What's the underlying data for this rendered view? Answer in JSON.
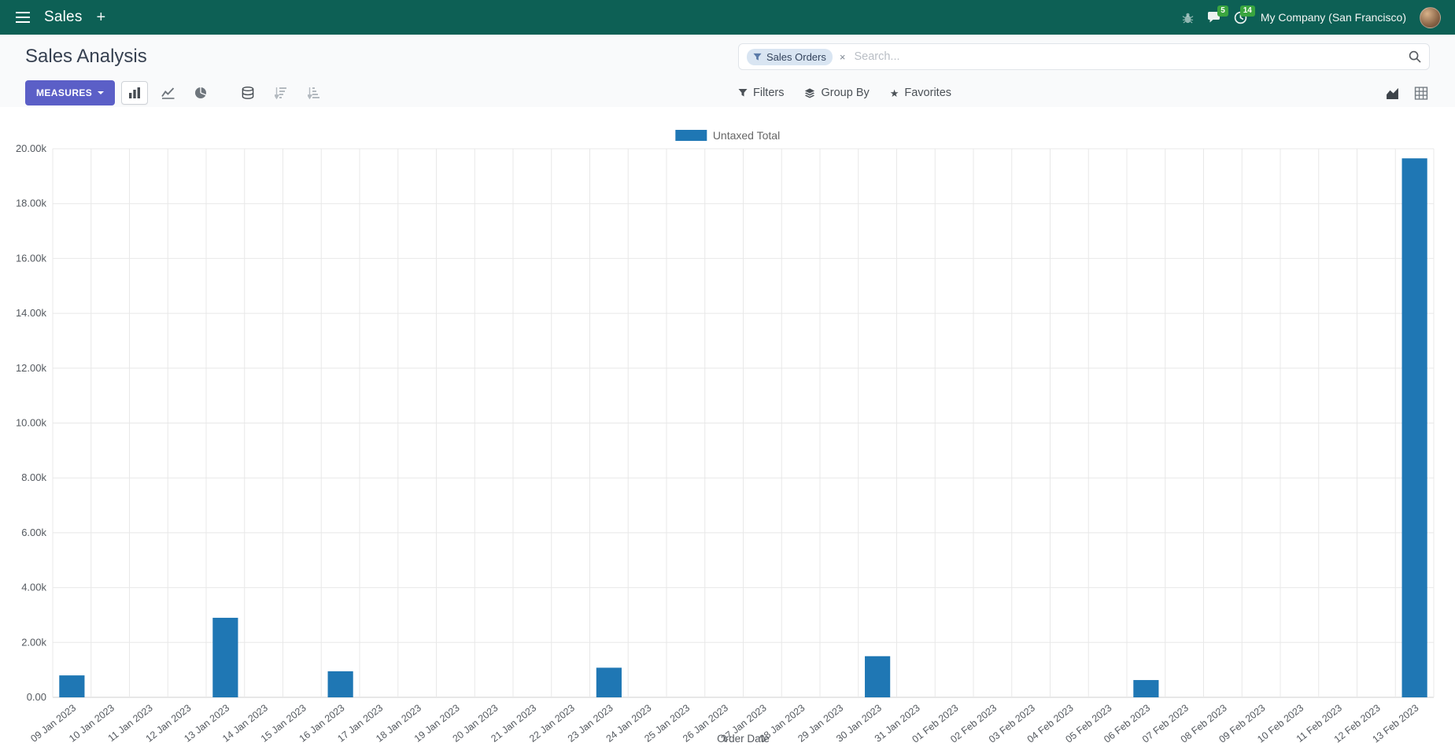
{
  "navbar": {
    "app_name": "Sales",
    "plus_label": "+",
    "message_badge": "5",
    "activity_badge": "14",
    "company": "My Company (San Francisco)"
  },
  "control_panel": {
    "title": "Sales Analysis",
    "measures_button": "MEASURES",
    "search": {
      "facet_label": "Sales Orders",
      "facet_remove": "×",
      "placeholder": "Search..."
    },
    "filters_label": "Filters",
    "group_by_label": "Group By",
    "favorites_label": "Favorites"
  },
  "icons": {
    "favorites_star": "★"
  },
  "chart_data": {
    "type": "bar",
    "title": "",
    "xlabel": "Order Date",
    "ylabel": "",
    "ylim": [
      0,
      20000
    ],
    "ytick_step": 2000,
    "grid": true,
    "legend_position": "top",
    "series_color": "#1f77b4",
    "categories": [
      "09 Jan 2023",
      "10 Jan 2023",
      "11 Jan 2023",
      "12 Jan 2023",
      "13 Jan 2023",
      "14 Jan 2023",
      "15 Jan 2023",
      "16 Jan 2023",
      "17 Jan 2023",
      "18 Jan 2023",
      "19 Jan 2023",
      "20 Jan 2023",
      "21 Jan 2023",
      "22 Jan 2023",
      "23 Jan 2023",
      "24 Jan 2023",
      "25 Jan 2023",
      "26 Jan 2023",
      "27 Jan 2023",
      "28 Jan 2023",
      "29 Jan 2023",
      "30 Jan 2023",
      "31 Jan 2023",
      "01 Feb 2023",
      "02 Feb 2023",
      "03 Feb 2023",
      "04 Feb 2023",
      "05 Feb 2023",
      "06 Feb 2023",
      "07 Feb 2023",
      "08 Feb 2023",
      "09 Feb 2023",
      "10 Feb 2023",
      "11 Feb 2023",
      "12 Feb 2023",
      "13 Feb 2023"
    ],
    "series": [
      {
        "name": "Untaxed Total",
        "values": [
          800,
          0,
          0,
          0,
          2900,
          0,
          0,
          950,
          0,
          0,
          0,
          0,
          0,
          0,
          1080,
          0,
          0,
          0,
          0,
          0,
          0,
          1500,
          0,
          0,
          0,
          0,
          0,
          0,
          630,
          0,
          0,
          0,
          0,
          0,
          0,
          19650
        ]
      }
    ]
  }
}
